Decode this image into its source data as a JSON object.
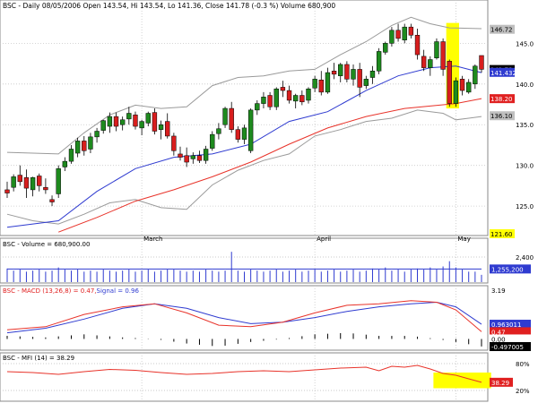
{
  "header": {
    "text": "BSC - Daily 08/05/2006  Open 143.54, Hi 143.54, Lo 141.36, Close 141.78 (-0.3 %) Volume 680,900"
  },
  "price_panel": {
    "yticks": [
      {
        "value": 125,
        "label": "125.0"
      },
      {
        "value": 130,
        "label": "130.0"
      },
      {
        "value": 135,
        "label": "135.0"
      },
      {
        "value": 140,
        "label": "140.0"
      },
      {
        "value": 145,
        "label": "145.0"
      }
    ],
    "right_labels": [
      {
        "value": 146.72,
        "label": "146.72",
        "bg": "#bfbfbf",
        "color": "#000000"
      },
      {
        "value": 141.78,
        "label": "141.78",
        "bg": "#000000",
        "color": "#ffffff"
      },
      {
        "value": 141.432,
        "label": "141.432",
        "bg": "#2f3bd0",
        "color": "#ffffff"
      },
      {
        "value": 138.2,
        "label": "138.20",
        "bg": "#e02020",
        "color": "#ffffff"
      },
      {
        "value": 136.1,
        "label": "136.10",
        "bg": "#bfbfbf",
        "color": "#000000"
      },
      {
        "value": 121.6,
        "label": "121.60",
        "bg": "#ffff00",
        "color": "#000000"
      }
    ],
    "month_labels": [
      {
        "index": 21,
        "label": "March"
      },
      {
        "index": 48,
        "label": "April"
      },
      {
        "index": 70,
        "label": "May"
      }
    ]
  },
  "volume_panel": {
    "label": "BSC - Volume = 680,900.00",
    "ytick": "2,400",
    "right_label": "1,255,200"
  },
  "macd_panel": {
    "label_prefix": "BSC - MACD (13,26,8) = 0.47,",
    "label_signal": "Signal = 0.96",
    "right_labels": [
      {
        "label": "3.19",
        "bg": "#ffffff",
        "color": "#000000"
      },
      {
        "label": "0.963011",
        "bg": "#2f3bd0",
        "color": "#ffffff"
      },
      {
        "label": "0.47",
        "bg": "#e02020",
        "color": "#ffffff"
      },
      {
        "label": "0.00",
        "bg": "#ffffff",
        "color": "#000000"
      },
      {
        "label": "-0.497005",
        "bg": "#000000",
        "color": "#ffffff"
      }
    ]
  },
  "mfi_panel": {
    "label": "BSC - MFI (14) = 38.29",
    "yticks": [
      {
        "value": 80,
        "label": "80%"
      },
      {
        "value": 20,
        "label": "20%"
      }
    ],
    "right_label": "38.29"
  },
  "colors": {
    "up": "#1e8a1e",
    "down": "#d81e1e",
    "sma20": "#2f3bd0",
    "sma50": "#e8332a",
    "bollinger": "#9a9a9a",
    "highlight": "#ffff00",
    "grid": "#c8c8c8"
  },
  "chart_data": {
    "type": "candlestick",
    "title": "BSC - Daily 08/05/2006",
    "symbol": "BSC",
    "last_bar": {
      "open": 143.54,
      "high": 143.54,
      "low": 141.36,
      "close": 141.78,
      "change_pct": -0.3,
      "volume": 680900
    },
    "ylim": [
      121.6,
      149
    ],
    "candles": [
      {
        "o": 127.0,
        "h": 128.0,
        "l": 126.0,
        "c": 126.6
      },
      {
        "o": 127.3,
        "h": 128.9,
        "l": 126.8,
        "c": 128.6
      },
      {
        "o": 128.8,
        "h": 130.0,
        "l": 127.5,
        "c": 128.0
      },
      {
        "o": 128.5,
        "h": 129.5,
        "l": 126.0,
        "c": 127.2
      },
      {
        "o": 127.0,
        "h": 128.6,
        "l": 126.2,
        "c": 128.5
      },
      {
        "o": 128.7,
        "h": 129.0,
        "l": 126.8,
        "c": 127.5
      },
      {
        "o": 127.3,
        "h": 128.4,
        "l": 126.5,
        "c": 127.0
      },
      {
        "o": 125.8,
        "h": 126.3,
        "l": 125.0,
        "c": 125.5
      },
      {
        "o": 126.5,
        "h": 130.0,
        "l": 126.0,
        "c": 129.6
      },
      {
        "o": 129.8,
        "h": 131.0,
        "l": 129.3,
        "c": 130.5
      },
      {
        "o": 130.5,
        "h": 132.5,
        "l": 130.2,
        "c": 132.0
      },
      {
        "o": 131.5,
        "h": 133.4,
        "l": 131.0,
        "c": 133.0
      },
      {
        "o": 133.0,
        "h": 133.6,
        "l": 131.2,
        "c": 131.8
      },
      {
        "o": 132.0,
        "h": 134.0,
        "l": 131.5,
        "c": 133.5
      },
      {
        "o": 133.5,
        "h": 134.6,
        "l": 132.8,
        "c": 134.2
      },
      {
        "o": 134.3,
        "h": 135.6,
        "l": 133.9,
        "c": 135.5
      },
      {
        "o": 134.8,
        "h": 136.5,
        "l": 134.0,
        "c": 136.0
      },
      {
        "o": 136.0,
        "h": 136.5,
        "l": 134.2,
        "c": 134.8
      },
      {
        "o": 135.0,
        "h": 136.0,
        "l": 134.3,
        "c": 135.6
      },
      {
        "o": 135.7,
        "h": 137.2,
        "l": 135.0,
        "c": 136.4
      },
      {
        "o": 136.2,
        "h": 136.6,
        "l": 134.4,
        "c": 134.8
      },
      {
        "o": 134.6,
        "h": 135.6,
        "l": 133.7,
        "c": 135.4
      },
      {
        "o": 135.2,
        "h": 136.6,
        "l": 134.8,
        "c": 136.4
      },
      {
        "o": 136.5,
        "h": 137.0,
        "l": 133.8,
        "c": 134.2
      },
      {
        "o": 134.4,
        "h": 135.5,
        "l": 133.2,
        "c": 135.0
      },
      {
        "o": 135.4,
        "h": 136.4,
        "l": 133.3,
        "c": 133.6
      },
      {
        "o": 133.6,
        "h": 134.0,
        "l": 131.2,
        "c": 131.8
      },
      {
        "o": 131.4,
        "h": 132.3,
        "l": 130.6,
        "c": 131.0
      },
      {
        "o": 131.2,
        "h": 132.2,
        "l": 129.8,
        "c": 130.4
      },
      {
        "o": 130.8,
        "h": 131.6,
        "l": 130.2,
        "c": 131.2
      },
      {
        "o": 131.2,
        "h": 131.8,
        "l": 130.3,
        "c": 130.6
      },
      {
        "o": 130.6,
        "h": 132.4,
        "l": 130.2,
        "c": 132.0
      },
      {
        "o": 132.1,
        "h": 134.2,
        "l": 131.8,
        "c": 133.8
      },
      {
        "o": 133.9,
        "h": 135.2,
        "l": 133.2,
        "c": 134.5
      },
      {
        "o": 135.0,
        "h": 137.2,
        "l": 134.6,
        "c": 137.0
      },
      {
        "o": 137.0,
        "h": 137.8,
        "l": 134.0,
        "c": 134.4
      },
      {
        "o": 134.4,
        "h": 134.8,
        "l": 132.8,
        "c": 133.2
      },
      {
        "o": 133.2,
        "h": 135.0,
        "l": 132.6,
        "c": 134.6
      },
      {
        "o": 131.8,
        "h": 137.0,
        "l": 131.5,
        "c": 136.8
      },
      {
        "o": 136.8,
        "h": 138.0,
        "l": 136.2,
        "c": 137.6
      },
      {
        "o": 137.6,
        "h": 139.0,
        "l": 137.0,
        "c": 138.4
      },
      {
        "o": 138.6,
        "h": 139.0,
        "l": 136.8,
        "c": 137.2
      },
      {
        "o": 137.2,
        "h": 139.6,
        "l": 136.8,
        "c": 139.4
      },
      {
        "o": 139.6,
        "h": 140.4,
        "l": 138.4,
        "c": 139.2
      },
      {
        "o": 139.2,
        "h": 139.8,
        "l": 137.6,
        "c": 138.0
      },
      {
        "o": 137.9,
        "h": 138.8,
        "l": 137.0,
        "c": 138.6
      },
      {
        "o": 138.6,
        "h": 139.2,
        "l": 137.4,
        "c": 137.8
      },
      {
        "o": 138.0,
        "h": 139.6,
        "l": 137.6,
        "c": 139.4
      },
      {
        "o": 139.5,
        "h": 141.0,
        "l": 139.0,
        "c": 140.6
      },
      {
        "o": 140.5,
        "h": 141.6,
        "l": 138.6,
        "c": 139.0
      },
      {
        "o": 139.0,
        "h": 142.0,
        "l": 138.8,
        "c": 141.4
      },
      {
        "o": 141.6,
        "h": 142.6,
        "l": 140.6,
        "c": 141.2
      },
      {
        "o": 141.0,
        "h": 142.6,
        "l": 140.2,
        "c": 142.4
      },
      {
        "o": 142.4,
        "h": 142.8,
        "l": 140.2,
        "c": 140.6
      },
      {
        "o": 140.6,
        "h": 142.4,
        "l": 139.8,
        "c": 141.8
      },
      {
        "o": 141.8,
        "h": 142.6,
        "l": 138.4,
        "c": 139.6
      },
      {
        "o": 139.8,
        "h": 141.0,
        "l": 139.4,
        "c": 140.6
      },
      {
        "o": 140.8,
        "h": 142.2,
        "l": 140.0,
        "c": 141.6
      },
      {
        "o": 141.6,
        "h": 144.4,
        "l": 141.2,
        "c": 144.0
      },
      {
        "o": 143.9,
        "h": 145.2,
        "l": 143.6,
        "c": 145.0
      },
      {
        "o": 145.0,
        "h": 147.0,
        "l": 144.6,
        "c": 146.6
      },
      {
        "o": 146.6,
        "h": 147.4,
        "l": 145.2,
        "c": 145.6
      },
      {
        "o": 145.4,
        "h": 147.4,
        "l": 145.0,
        "c": 147.0
      },
      {
        "o": 147.0,
        "h": 147.4,
        "l": 145.6,
        "c": 146.0
      },
      {
        "o": 146.0,
        "h": 146.8,
        "l": 143.0,
        "c": 143.6
      },
      {
        "o": 143.4,
        "h": 144.2,
        "l": 141.6,
        "c": 142.0
      },
      {
        "o": 142.0,
        "h": 143.4,
        "l": 141.0,
        "c": 143.0
      },
      {
        "o": 143.2,
        "h": 145.6,
        "l": 143.0,
        "c": 145.2
      },
      {
        "o": 145.2,
        "h": 145.6,
        "l": 141.0,
        "c": 141.8
      },
      {
        "o": 142.8,
        "h": 143.0,
        "l": 137.2,
        "c": 137.6
      },
      {
        "o": 137.6,
        "h": 140.8,
        "l": 137.2,
        "c": 140.4
      },
      {
        "o": 140.6,
        "h": 141.0,
        "l": 138.6,
        "c": 139.2
      },
      {
        "o": 139.0,
        "h": 140.6,
        "l": 138.8,
        "c": 140.2
      },
      {
        "o": 140.0,
        "h": 142.4,
        "l": 139.4,
        "c": 142.2
      },
      {
        "o": 143.5,
        "h": 143.5,
        "l": 141.4,
        "c": 141.8
      }
    ],
    "sma20": [
      [
        0,
        122.4
      ],
      [
        8,
        123.2
      ],
      [
        14,
        126.8
      ],
      [
        20,
        129.6
      ],
      [
        26,
        131.0
      ],
      [
        32,
        131.4
      ],
      [
        38,
        132.6
      ],
      [
        44,
        135.4
      ],
      [
        50,
        136.6
      ],
      [
        56,
        139.2
      ],
      [
        61,
        141.0
      ],
      [
        66,
        142.0
      ],
      [
        70,
        142.2
      ],
      [
        74,
        141.4
      ]
    ],
    "sma50": [
      [
        8,
        121.8
      ],
      [
        14,
        123.6
      ],
      [
        20,
        125.6
      ],
      [
        26,
        127.0
      ],
      [
        32,
        128.6
      ],
      [
        38,
        130.4
      ],
      [
        44,
        132.6
      ],
      [
        50,
        134.6
      ],
      [
        56,
        136.0
      ],
      [
        62,
        137.0
      ],
      [
        70,
        137.6
      ],
      [
        74,
        138.2
      ]
    ],
    "bollinger_upper": [
      [
        0,
        131.6
      ],
      [
        8,
        131.4
      ],
      [
        12,
        134.0
      ],
      [
        16,
        136.2
      ],
      [
        20,
        137.4
      ],
      [
        24,
        137.0
      ],
      [
        28,
        137.2
      ],
      [
        32,
        139.8
      ],
      [
        36,
        140.8
      ],
      [
        40,
        141.0
      ],
      [
        44,
        141.6
      ],
      [
        48,
        141.8
      ],
      [
        52,
        143.6
      ],
      [
        56,
        145.2
      ],
      [
        60,
        147.2
      ],
      [
        63,
        148.2
      ],
      [
        66,
        147.4
      ],
      [
        69,
        146.9
      ],
      [
        74,
        146.8
      ]
    ],
    "bollinger_lower": [
      [
        0,
        124.0
      ],
      [
        4,
        123.2
      ],
      [
        8,
        122.8
      ],
      [
        12,
        124.0
      ],
      [
        16,
        125.4
      ],
      [
        20,
        125.8
      ],
      [
        24,
        124.8
      ],
      [
        28,
        124.6
      ],
      [
        32,
        127.6
      ],
      [
        36,
        129.4
      ],
      [
        40,
        130.6
      ],
      [
        44,
        131.4
      ],
      [
        48,
        133.6
      ],
      [
        52,
        134.4
      ],
      [
        56,
        135.4
      ],
      [
        60,
        135.8
      ],
      [
        64,
        136.8
      ],
      [
        68,
        136.4
      ],
      [
        70,
        135.6
      ],
      [
        72,
        135.8
      ],
      [
        74,
        136.0
      ]
    ],
    "volume": [
      1.3,
      1.1,
      1.2,
      1.0,
      1.1,
      1.2,
      1.0,
      1.1,
      1.4,
      1.2,
      1.1,
      1.2,
      1.0,
      1.1,
      1.0,
      1.2,
      1.1,
      1.0,
      1.1,
      1.2,
      1.0,
      1.1,
      1.2,
      1.0,
      1.1,
      1.2,
      1.2,
      1.1,
      1.0,
      1.1,
      1.0,
      1.2,
      1.1,
      1.0,
      1.1,
      2.9,
      1.1,
      1.0,
      1.2,
      1.1,
      1.0,
      1.1,
      1.2,
      1.0,
      1.1,
      1.2,
      1.0,
      1.1,
      1.2,
      1.0,
      1.1,
      1.2,
      1.0,
      1.1,
      1.2,
      1.0,
      1.1,
      1.3,
      1.2,
      1.4,
      1.1,
      1.2,
      1.0,
      1.2,
      1.3,
      1.2,
      1.4,
      1.2,
      1.5,
      2.0,
      1.4,
      1.2,
      1.0,
      1.0,
      0.7
    ],
    "volume_avg": 1.255,
    "volume_ylim": [
      0,
      3.0
    ],
    "macd": [
      [
        0,
        0.6
      ],
      [
        6,
        0.8
      ],
      [
        12,
        1.6
      ],
      [
        18,
        2.1
      ],
      [
        23,
        2.3
      ],
      [
        28,
        1.7
      ],
      [
        33,
        0.9
      ],
      [
        38,
        0.8
      ],
      [
        43,
        1.1
      ],
      [
        48,
        1.7
      ],
      [
        53,
        2.2
      ],
      [
        58,
        2.3
      ],
      [
        63,
        2.5
      ],
      [
        67,
        2.4
      ],
      [
        70,
        1.9
      ],
      [
        74,
        0.47
      ]
    ],
    "signal": [
      [
        0,
        0.4
      ],
      [
        6,
        0.7
      ],
      [
        12,
        1.3
      ],
      [
        18,
        2.0
      ],
      [
        23,
        2.3
      ],
      [
        28,
        2.0
      ],
      [
        33,
        1.4
      ],
      [
        38,
        1.0
      ],
      [
        43,
        1.1
      ],
      [
        48,
        1.4
      ],
      [
        53,
        1.8
      ],
      [
        58,
        2.1
      ],
      [
        63,
        2.3
      ],
      [
        67,
        2.4
      ],
      [
        70,
        2.1
      ],
      [
        74,
        0.96
      ]
    ],
    "macd_ylim": [
      -0.5,
      3.19
    ],
    "mfi": [
      [
        0,
        62
      ],
      [
        4,
        60
      ],
      [
        8,
        56
      ],
      [
        12,
        62
      ],
      [
        16,
        67
      ],
      [
        20,
        65
      ],
      [
        24,
        60
      ],
      [
        28,
        56
      ],
      [
        32,
        58
      ],
      [
        36,
        62
      ],
      [
        40,
        64
      ],
      [
        44,
        62
      ],
      [
        48,
        66
      ],
      [
        52,
        70
      ],
      [
        56,
        72
      ],
      [
        58,
        64
      ],
      [
        60,
        74
      ],
      [
        62,
        72
      ],
      [
        64,
        76
      ],
      [
        66,
        68
      ],
      [
        68,
        58
      ],
      [
        70,
        54
      ],
      [
        72,
        46
      ],
      [
        74,
        38.29
      ]
    ],
    "mfi_ylim": [
      0,
      100
    ],
    "highlights": [
      {
        "panel": "price",
        "from_index": 68.5,
        "to_index": 70.5,
        "y_from": 137.0,
        "y_to": 147.5
      },
      {
        "panel": "mfi",
        "from_index": 66.5,
        "to_index": 75.5,
        "y_from": 25,
        "y_to": 60
      }
    ]
  }
}
